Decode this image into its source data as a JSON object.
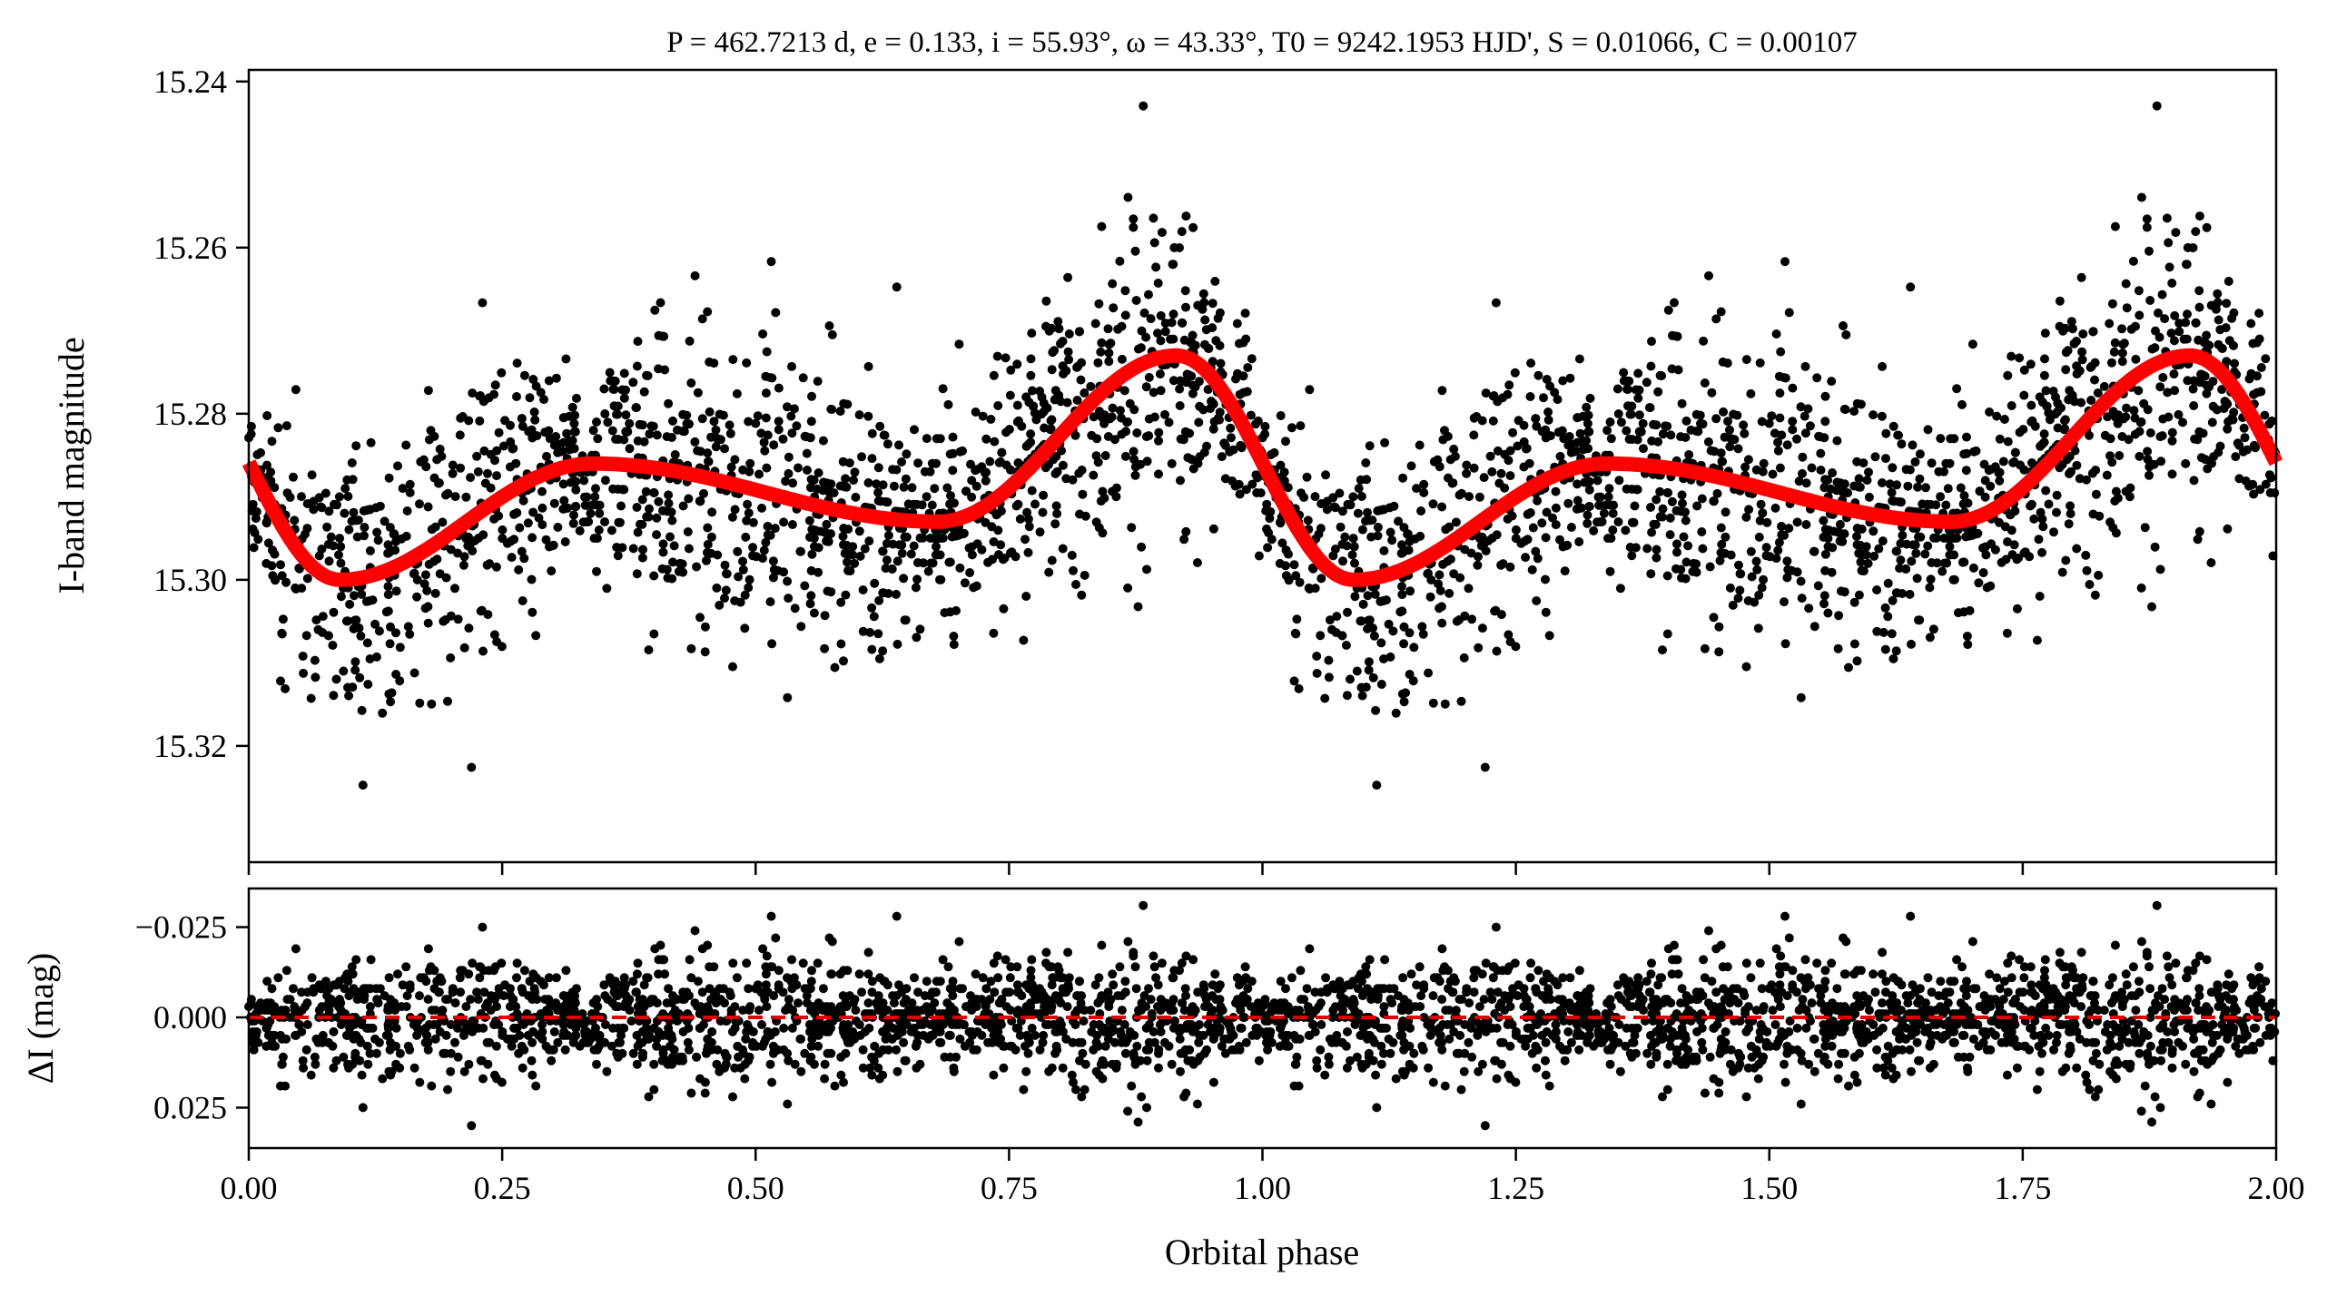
{
  "chart_data": [
    {
      "type": "scatter",
      "panel": "light-curve",
      "title": "P = 462.7213 d, e = 0.133, i = 55.93°, ω = 43.33°, T0 = 9242.1953 HJD', S = 0.01066, C = 0.00107",
      "xlabel": "",
      "ylabel": "I-band magnitude",
      "xlim": [
        0,
        2
      ],
      "ylim": [
        15.334,
        15.2386
      ],
      "y_inverted": true,
      "yticks": [
        "15.24",
        "15.26",
        "15.28",
        "15.30",
        "15.32"
      ],
      "ytick_values": [
        15.24,
        15.26,
        15.28,
        15.3,
        15.32
      ],
      "grid": false,
      "model_color": "#ff0000",
      "point_color": "#000000",
      "model_extrema_phase": [
        -0.085,
        0.09,
        0.34,
        0.68,
        0.915,
        1.09
      ],
      "model_extrema_mag": [
        15.273,
        15.3,
        15.286,
        15.293,
        15.273,
        15.3
      ],
      "observations": {
        "count_per_cycle": 1500,
        "scatter_sigma_mag": 0.0075,
        "repeated_over_phase": [
          0,
          1
        ]
      }
    },
    {
      "type": "scatter",
      "panel": "residuals",
      "xlabel": "Orbital phase",
      "ylabel": "ΔI (mag)",
      "xlim": [
        0,
        2
      ],
      "ylim": [
        -0.0357,
        0.0362
      ],
      "y_inverted": true,
      "xticks": [
        "0.00",
        "0.25",
        "0.50",
        "0.75",
        "1.00",
        "1.25",
        "1.50",
        "1.75",
        "2.00"
      ],
      "xtick_values": [
        0,
        0.25,
        0.5,
        0.75,
        1.0,
        1.25,
        1.5,
        1.75,
        2.0
      ],
      "yticks": [
        "−0.025",
        "0.000",
        "0.025"
      ],
      "ytick_values": [
        -0.025,
        0,
        0.025
      ],
      "zero_line_color": "#e00000",
      "grid": false
    }
  ]
}
